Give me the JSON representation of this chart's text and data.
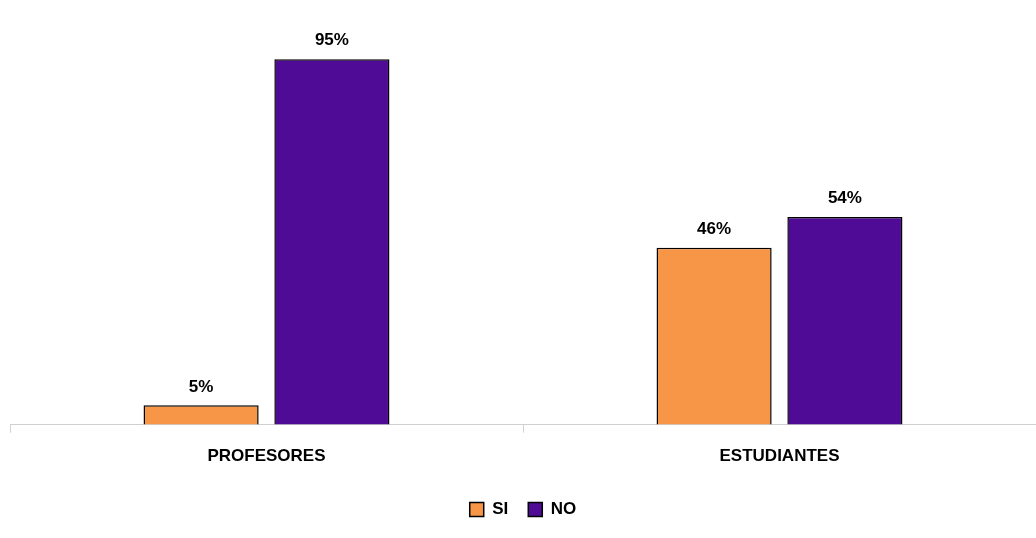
{
  "chart_data": {
    "type": "bar",
    "categories": [
      "PROFESORES",
      "ESTUDIANTES"
    ],
    "series": [
      {
        "name": "SI",
        "color": "#f79646",
        "values": [
          5,
          46
        ],
        "value_labels": [
          "5%",
          "46%"
        ]
      },
      {
        "name": "NO",
        "color": "#4f0b96",
        "values": [
          95,
          54
        ],
        "value_labels": [
          "95%",
          "54%"
        ]
      }
    ],
    "legend": "bottom",
    "grid": false
  }
}
